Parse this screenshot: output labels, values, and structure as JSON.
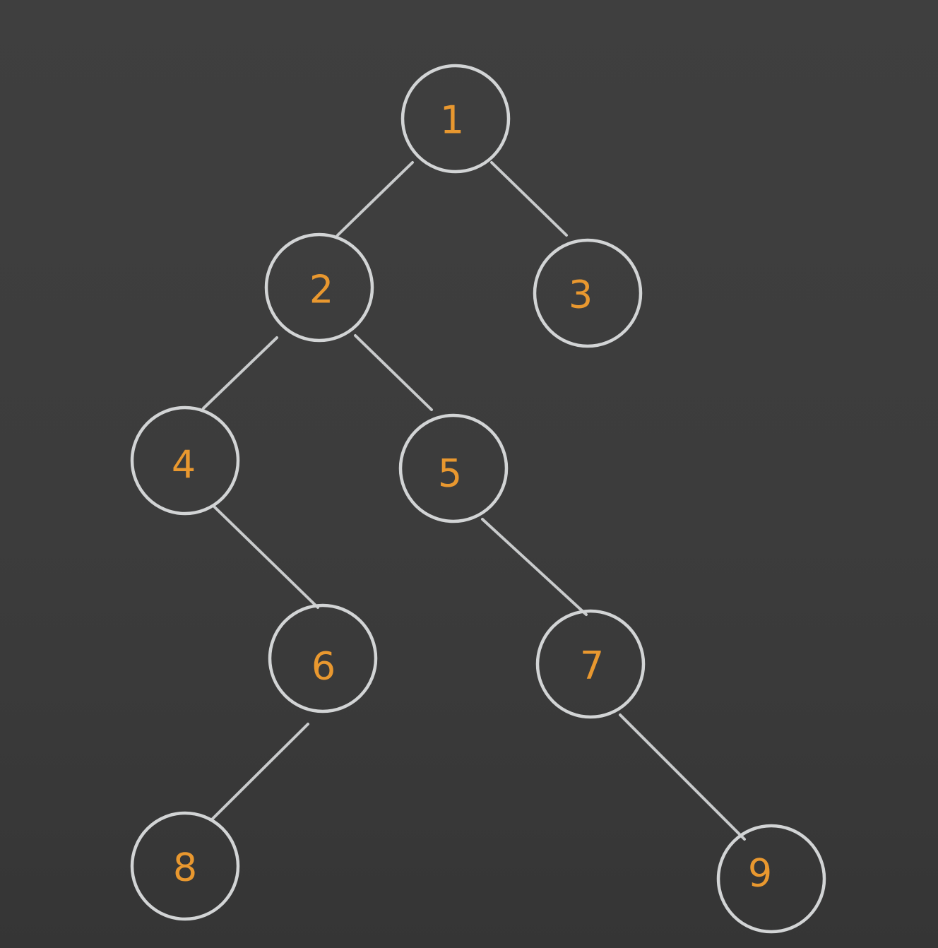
{
  "diagram": {
    "type": "binary-tree",
    "colors": {
      "background": "#3c3c3c",
      "node_outline": "#d2d4d5",
      "edge": "#c9cbcc",
      "label": "#e9982f"
    },
    "nodes": [
      {
        "id": "1",
        "label": "1"
      },
      {
        "id": "2",
        "label": "2"
      },
      {
        "id": "3",
        "label": "3"
      },
      {
        "id": "4",
        "label": "4"
      },
      {
        "id": "5",
        "label": "5"
      },
      {
        "id": "6",
        "label": "6"
      },
      {
        "id": "7",
        "label": "7"
      },
      {
        "id": "8",
        "label": "8"
      },
      {
        "id": "9",
        "label": "9"
      }
    ],
    "edges": [
      {
        "from": "1",
        "to": "2"
      },
      {
        "from": "1",
        "to": "3"
      },
      {
        "from": "2",
        "to": "4"
      },
      {
        "from": "2",
        "to": "5"
      },
      {
        "from": "4",
        "to": "6"
      },
      {
        "from": "5",
        "to": "7"
      },
      {
        "from": "6",
        "to": "8"
      },
      {
        "from": "7",
        "to": "9"
      }
    ]
  }
}
